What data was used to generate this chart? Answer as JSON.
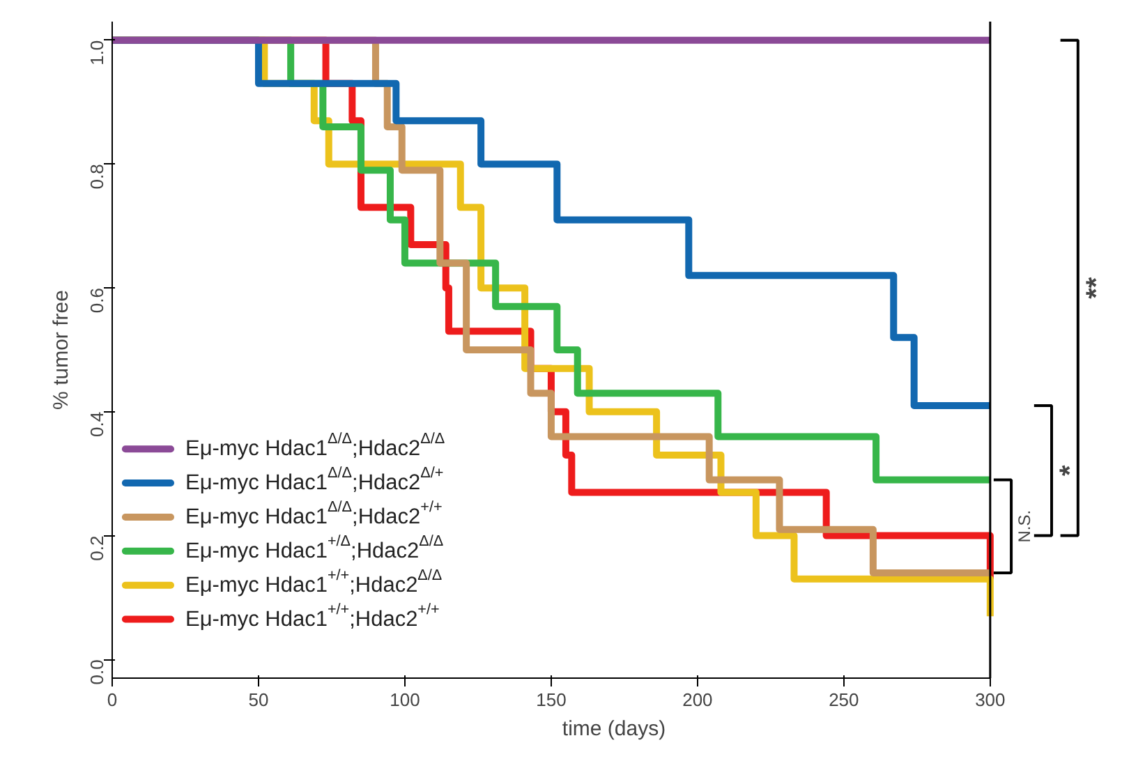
{
  "chart_data": {
    "type": "step",
    "xlabel": "time (days)",
    "ylabel": "% tumor free",
    "xlim": [
      0,
      300
    ],
    "ylim": [
      -0.03,
      1.03
    ],
    "xticks": [
      0,
      50,
      100,
      150,
      200,
      250,
      300
    ],
    "yticks": [
      {
        "value": 0,
        "label": "0.0"
      },
      {
        "value": 0.2,
        "label": "0.2"
      },
      {
        "value": 0.4,
        "label": "0.4"
      },
      {
        "value": 0.6,
        "label": "0.6"
      },
      {
        "value": 0.8,
        "label": "0.8"
      },
      {
        "value": 1,
        "label": "1.0"
      }
    ],
    "grid": false,
    "legend": "bottom left",
    "line_style": "solid",
    "series": [
      {
        "name": "Eμ-myc Hdac1$^{Δ/Δ}$;Hdac2$^{Δ/Δ}$",
        "color": "#8b4a97",
        "x": [
          0,
          300
        ],
        "values": [
          1,
          1
        ]
      },
      {
        "name": "Eμ-myc Hdac1$^{Δ/Δ}$;Hdac2$^{Δ/+}$",
        "color": "#1268b0",
        "x": [
          0,
          50,
          97,
          126,
          152,
          197,
          267,
          274,
          300
        ],
        "values": [
          1,
          0.93,
          0.87,
          0.8,
          0.71,
          0.62,
          0.52,
          0.41,
          0.41
        ]
      },
      {
        "name": "Eμ-myc Hdac1$^{Δ/Δ}$;Hdac2$^{+/+}$",
        "color": "#c8965f",
        "x": [
          0,
          90,
          94,
          99,
          112,
          121,
          143,
          150,
          204,
          228,
          260,
          300
        ],
        "values": [
          1,
          0.93,
          0.86,
          0.79,
          0.64,
          0.5,
          0.43,
          0.36,
          0.29,
          0.21,
          0.14,
          0.14
        ]
      },
      {
        "name": "Eμ-myc Hdac1$^{+/Δ}$;Hdac2$^{Δ/Δ}$",
        "color": "#37b64a",
        "x": [
          0,
          61,
          72,
          85,
          95,
          100,
          131,
          152,
          159,
          207,
          261,
          300
        ],
        "values": [
          1,
          0.93,
          0.86,
          0.79,
          0.71,
          0.64,
          0.57,
          0.5,
          0.43,
          0.36,
          0.29,
          0.29
        ]
      },
      {
        "name": "Eμ-myc Hdac1$^{+/+}$;Hdac2$^{Δ/Δ}$",
        "color": "#ecc21c",
        "x": [
          0,
          52,
          69,
          74,
          119,
          126,
          141,
          163,
          186,
          208,
          220,
          233,
          300
        ],
        "values": [
          1,
          0.93,
          0.87,
          0.8,
          0.73,
          0.6,
          0.47,
          0.4,
          0.33,
          0.27,
          0.2,
          0.13,
          0.07
        ]
      },
      {
        "name": "Eμ-myc Hdac1$^{+/+}$;Hdac2$^{+/+}$",
        "color": "#ee1c1c",
        "x": [
          0,
          73,
          82,
          85,
          102,
          114,
          115,
          143,
          150,
          155,
          157,
          244,
          300
        ],
        "values": [
          1,
          0.93,
          0.87,
          0.73,
          0.67,
          0.6,
          0.53,
          0.47,
          0.4,
          0.33,
          0.27,
          0.2,
          0.13
        ]
      }
    ],
    "annotations": [
      "N.S.",
      "*",
      "**"
    ]
  }
}
